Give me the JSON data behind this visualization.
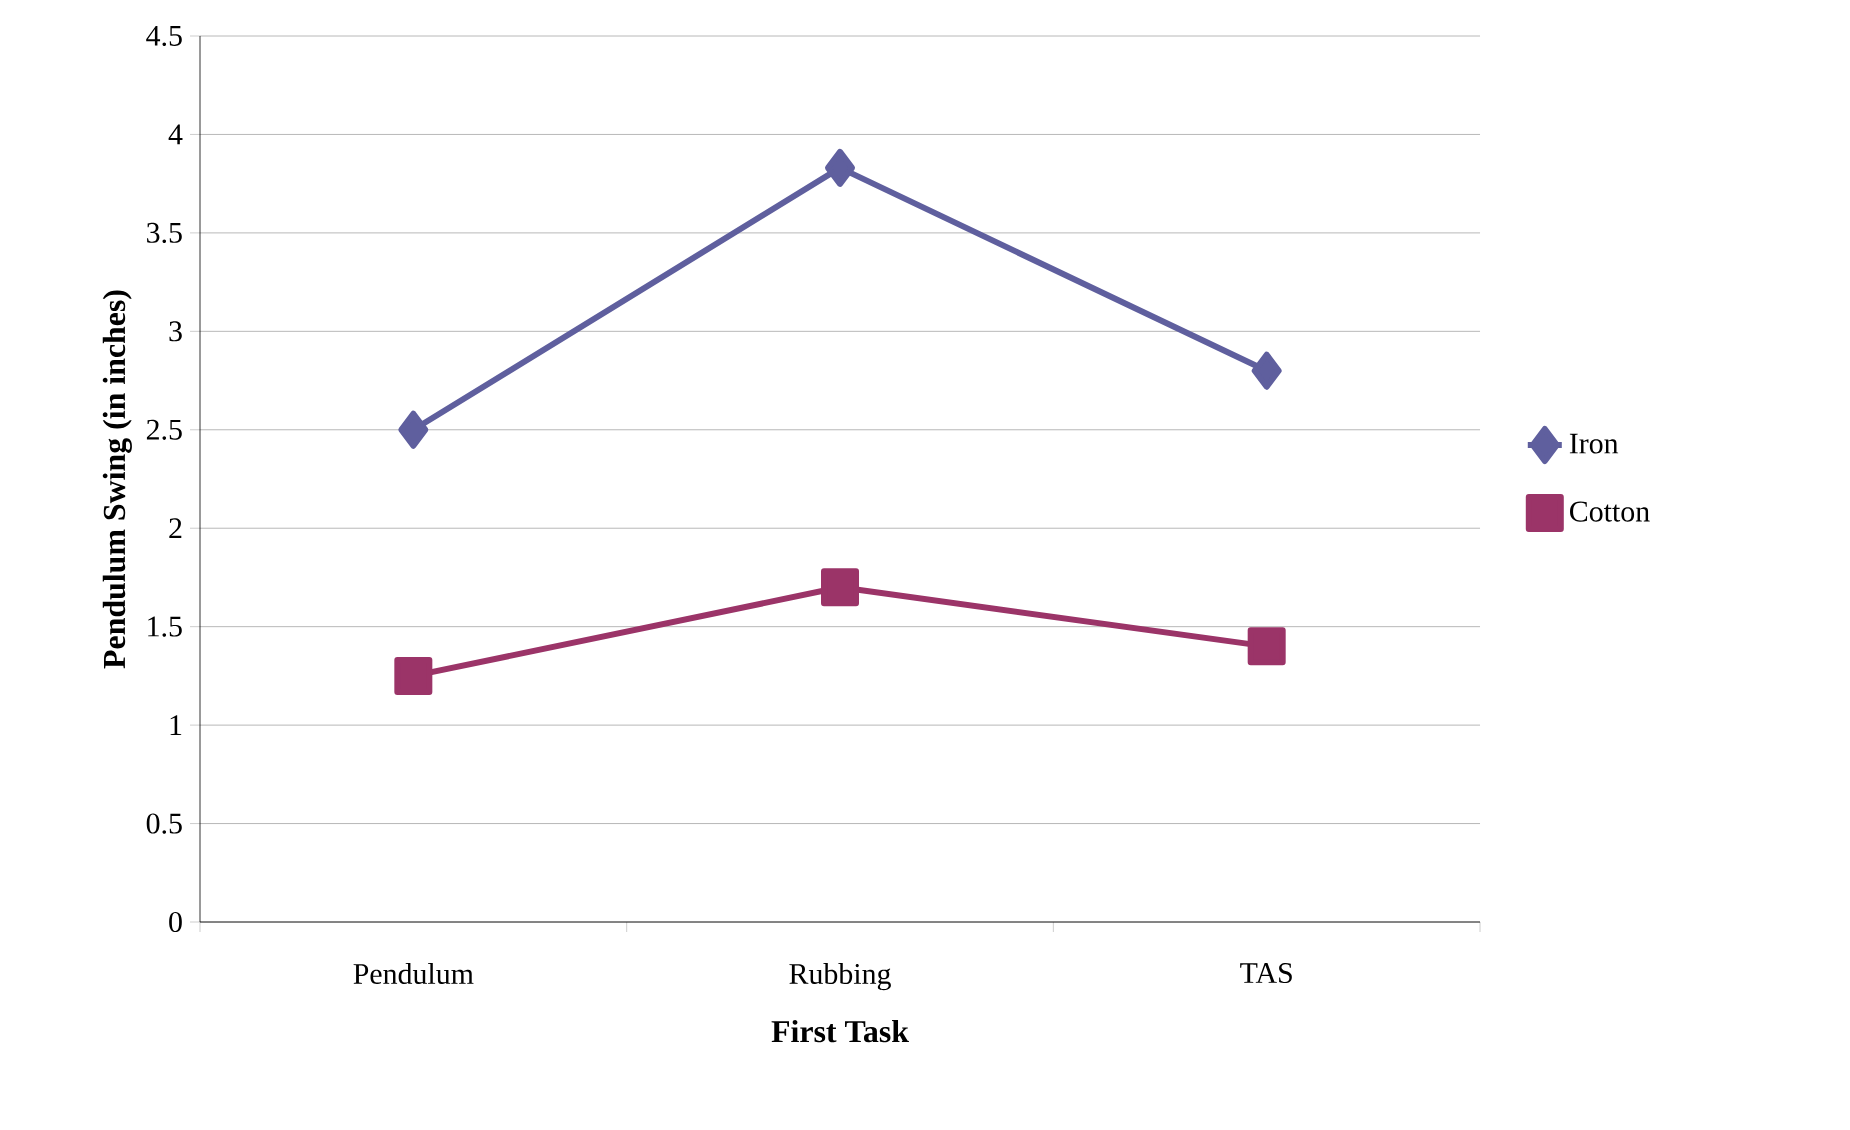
{
  "chart_data": {
    "type": "line",
    "xlabel": "First Task",
    "ylabel": "Pendulum Swing (in inches)",
    "categories": [
      "Pendulum",
      "Rubbing",
      "TAS"
    ],
    "series": [
      {
        "name": "Iron",
        "color": "#5f5f9e",
        "marker": "diamond",
        "values": [
          2.5,
          3.83,
          2.8
        ]
      },
      {
        "name": "Cotton",
        "color": "#9b3468",
        "marker": "square",
        "values": [
          1.25,
          1.7,
          1.4
        ]
      }
    ],
    "ylim": [
      0,
      4.5
    ],
    "yticks": [
      0,
      0.5,
      1,
      1.5,
      2,
      2.5,
      3,
      3.5,
      4,
      4.5
    ],
    "grid": "y",
    "legend": "right"
  }
}
